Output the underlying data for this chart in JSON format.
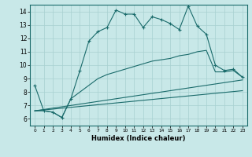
{
  "xlabel": "Humidex (Indice chaleur)",
  "background_color": "#c8e8e8",
  "grid_color": "#a8d0d0",
  "line_color": "#1a6b6b",
  "xlim": [
    -0.5,
    23.5
  ],
  "ylim": [
    5.5,
    14.5
  ],
  "xticks": [
    0,
    1,
    2,
    3,
    4,
    5,
    6,
    7,
    8,
    9,
    10,
    11,
    12,
    13,
    14,
    15,
    16,
    17,
    18,
    19,
    20,
    21,
    22,
    23
  ],
  "yticks": [
    6,
    7,
    8,
    9,
    10,
    11,
    12,
    13,
    14
  ],
  "series_main": {
    "x": [
      0,
      1,
      2,
      3,
      4,
      5,
      6,
      7,
      8,
      9,
      10,
      11,
      12,
      13,
      14,
      15,
      16,
      17,
      18,
      19,
      20,
      21,
      22,
      23
    ],
    "y": [
      8.5,
      6.6,
      6.5,
      6.1,
      7.5,
      9.6,
      11.8,
      12.5,
      12.8,
      14.1,
      13.8,
      13.8,
      12.8,
      13.6,
      13.4,
      13.1,
      12.65,
      14.4,
      12.9,
      12.3,
      10.0,
      9.6,
      9.7,
      9.1
    ]
  },
  "series_line2": {
    "x": [
      0,
      1,
      2,
      3,
      4,
      5,
      6,
      7,
      8,
      9,
      10,
      11,
      12,
      13,
      14,
      15,
      16,
      17,
      18,
      19,
      20,
      21,
      22,
      23
    ],
    "y": [
      6.6,
      6.6,
      6.5,
      6.1,
      7.5,
      8.0,
      8.5,
      9.0,
      9.3,
      9.5,
      9.7,
      9.9,
      10.1,
      10.3,
      10.4,
      10.5,
      10.7,
      10.8,
      11.0,
      11.1,
      9.5,
      9.5,
      9.6,
      9.1
    ]
  },
  "series_line3": {
    "x": [
      0,
      23
    ],
    "y": [
      6.6,
      8.9
    ]
  },
  "series_line4": {
    "x": [
      0,
      23
    ],
    "y": [
      6.6,
      8.1
    ]
  }
}
